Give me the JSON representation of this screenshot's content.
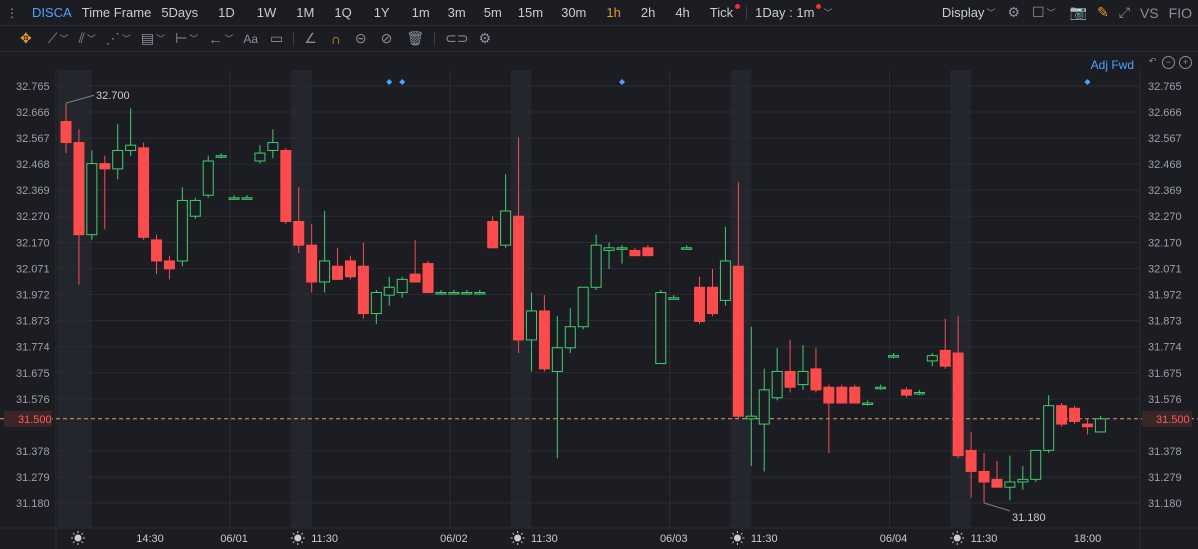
{
  "toolbar": {
    "symbol": "DISCA",
    "time_frame_label": "Time Frame",
    "periods": [
      "5Days",
      "1D",
      "1W",
      "1M",
      "1Q",
      "1Y",
      "1m",
      "3m",
      "5m",
      "15m",
      "30m",
      "1h",
      "2h",
      "4h",
      "Tick"
    ],
    "active_period": "1h",
    "interval_select": "1Day : 1m",
    "display_label": "Display",
    "vs_label": "VS",
    "fio_label": "FIO"
  },
  "drawing_toolbar": {
    "text_tool": "Aa"
  },
  "adj_label": "Adj Fwd",
  "colors": {
    "up": "#3ecf6e",
    "down": "#ff4b4b",
    "bg": "#1b1d22",
    "grid": "#2a2d33",
    "session": "#23262c",
    "accent": "#e09a2b",
    "blue": "#4da3ff"
  },
  "chart_data": {
    "type": "candlestick",
    "symbol": "DISCA",
    "ylim": [
      31.13,
      32.81
    ],
    "y_ticks": [
      32.765,
      32.666,
      32.567,
      32.468,
      32.369,
      32.27,
      32.17,
      32.071,
      31.972,
      31.873,
      31.774,
      31.675,
      31.576,
      31.5,
      31.378,
      31.279,
      31.18
    ],
    "y_tick_labels": [
      "32.765",
      "32.666",
      "32.567",
      "32.468",
      "32.369",
      "32.270",
      "32.170",
      "32.071",
      "31.972",
      "31.873",
      "31.774",
      "31.675",
      "31.576",
      "31.500",
      "31.378",
      "31.279",
      "31.180"
    ],
    "current_price": 31.5,
    "current_price_label": "31.500",
    "high_label": "32.700",
    "low_label": "31.180",
    "x_labels": [
      {
        "i": 0,
        "text": "",
        "sun": true
      },
      {
        "i": 6.5,
        "text": "14:30"
      },
      {
        "i": 13,
        "text": "06/01"
      },
      {
        "i": 17,
        "text": "",
        "sun": true
      },
      {
        "i": 20,
        "text": "11:30"
      },
      {
        "i": 30,
        "text": "06/02"
      },
      {
        "i": 34,
        "text": "",
        "sun": true
      },
      {
        "i": 37,
        "text": "11:30"
      },
      {
        "i": 47,
        "text": "06/03"
      },
      {
        "i": 51,
        "text": "",
        "sun": true
      },
      {
        "i": 54,
        "text": "11:30"
      },
      {
        "i": 64,
        "text": "06/04"
      },
      {
        "i": 68,
        "text": "",
        "sun": true
      },
      {
        "i": 71,
        "text": "11:30"
      },
      {
        "i": 79,
        "text": "18:00"
      }
    ],
    "candles": [
      {
        "o": 32.63,
        "h": 32.7,
        "l": 32.51,
        "c": 32.55
      },
      {
        "o": 32.55,
        "h": 32.6,
        "l": 32.01,
        "c": 32.2
      },
      {
        "o": 32.2,
        "h": 32.52,
        "l": 32.18,
        "c": 32.47
      },
      {
        "o": 32.47,
        "h": 32.5,
        "l": 32.22,
        "c": 32.45
      },
      {
        "o": 32.45,
        "h": 32.62,
        "l": 32.41,
        "c": 32.52
      },
      {
        "o": 32.52,
        "h": 32.68,
        "l": 32.5,
        "c": 32.54
      },
      {
        "o": 32.53,
        "h": 32.55,
        "l": 32.18,
        "c": 32.19
      },
      {
        "o": 32.18,
        "h": 32.2,
        "l": 32.05,
        "c": 32.1
      },
      {
        "o": 32.1,
        "h": 32.12,
        "l": 32.03,
        "c": 32.07
      },
      {
        "o": 32.1,
        "h": 32.38,
        "l": 32.08,
        "c": 32.33
      },
      {
        "o": 32.27,
        "h": 32.34,
        "l": 32.26,
        "c": 32.33
      },
      {
        "o": 32.35,
        "h": 32.5,
        "l": 32.34,
        "c": 32.48
      },
      {
        "o": 32.5,
        "h": 32.51,
        "l": 32.49,
        "c": 32.5
      },
      {
        "o": 32.34,
        "h": 32.35,
        "l": 32.34,
        "c": 32.34
      },
      {
        "o": 32.34,
        "h": 32.35,
        "l": 32.34,
        "c": 32.34
      },
      {
        "o": 32.48,
        "h": 32.54,
        "l": 32.47,
        "c": 32.51
      },
      {
        "o": 32.52,
        "h": 32.6,
        "l": 32.49,
        "c": 32.55
      },
      {
        "o": 32.52,
        "h": 32.53,
        "l": 32.24,
        "c": 32.25
      },
      {
        "o": 32.25,
        "h": 32.38,
        "l": 32.13,
        "c": 32.16
      },
      {
        "o": 32.16,
        "h": 32.24,
        "l": 31.98,
        "c": 32.02
      },
      {
        "o": 32.02,
        "h": 32.29,
        "l": 31.98,
        "c": 32.1
      },
      {
        "o": 32.08,
        "h": 32.15,
        "l": 32.03,
        "c": 32.03
      },
      {
        "o": 32.1,
        "h": 32.12,
        "l": 32.03,
        "c": 32.04
      },
      {
        "o": 32.08,
        "h": 32.17,
        "l": 31.88,
        "c": 31.9
      },
      {
        "o": 31.9,
        "h": 31.99,
        "l": 31.86,
        "c": 31.98
      },
      {
        "o": 31.97,
        "h": 32.04,
        "l": 31.93,
        "c": 32.0
      },
      {
        "o": 31.98,
        "h": 32.04,
        "l": 31.96,
        "c": 32.03
      },
      {
        "o": 32.05,
        "h": 32.18,
        "l": 32.02,
        "c": 32.02
      },
      {
        "o": 32.09,
        "h": 32.1,
        "l": 31.98,
        "c": 31.98
      },
      {
        "o": 31.98,
        "h": 31.99,
        "l": 31.98,
        "c": 31.98
      },
      {
        "o": 31.98,
        "h": 31.99,
        "l": 31.98,
        "c": 31.98
      },
      {
        "o": 31.98,
        "h": 31.99,
        "l": 31.98,
        "c": 31.98
      },
      {
        "o": 31.98,
        "h": 31.99,
        "l": 31.98,
        "c": 31.98
      },
      {
        "o": 32.25,
        "h": 32.27,
        "l": 32.15,
        "c": 32.15
      },
      {
        "o": 32.16,
        "h": 32.43,
        "l": 32.15,
        "c": 32.29
      },
      {
        "o": 32.27,
        "h": 32.57,
        "l": 31.75,
        "c": 31.8
      },
      {
        "o": 31.8,
        "h": 31.98,
        "l": 31.68,
        "c": 31.91
      },
      {
        "o": 31.91,
        "h": 31.97,
        "l": 31.68,
        "c": 31.69
      },
      {
        "o": 31.68,
        "h": 31.89,
        "l": 31.35,
        "c": 31.77
      },
      {
        "o": 31.77,
        "h": 31.92,
        "l": 31.75,
        "c": 31.85
      },
      {
        "o": 31.85,
        "h": 32.0,
        "l": 31.84,
        "c": 32.0
      },
      {
        "o": 32.0,
        "h": 32.2,
        "l": 31.99,
        "c": 32.16
      },
      {
        "o": 32.14,
        "h": 32.17,
        "l": 32.07,
        "c": 32.15
      },
      {
        "o": 32.15,
        "h": 32.16,
        "l": 32.09,
        "c": 32.15
      },
      {
        "o": 32.14,
        "h": 32.15,
        "l": 32.12,
        "c": 32.12
      },
      {
        "o": 32.15,
        "h": 32.16,
        "l": 32.12,
        "c": 32.12
      },
      {
        "o": 31.71,
        "h": 31.99,
        "l": 31.71,
        "c": 31.98
      },
      {
        "o": 31.96,
        "h": 31.97,
        "l": 31.96,
        "c": 31.96
      },
      {
        "o": 32.15,
        "h": 32.16,
        "l": 32.15,
        "c": 32.15
      },
      {
        "o": 32.0,
        "h": 32.04,
        "l": 31.86,
        "c": 31.87
      },
      {
        "o": 32.0,
        "h": 32.07,
        "l": 31.89,
        "c": 31.9
      },
      {
        "o": 31.95,
        "h": 32.23,
        "l": 31.93,
        "c": 32.1
      },
      {
        "o": 32.08,
        "h": 32.4,
        "l": 31.5,
        "c": 31.51
      },
      {
        "o": 31.5,
        "h": 31.85,
        "l": 31.32,
        "c": 31.51
      },
      {
        "o": 31.48,
        "h": 31.69,
        "l": 31.3,
        "c": 31.61
      },
      {
        "o": 31.58,
        "h": 31.77,
        "l": 31.57,
        "c": 31.68
      },
      {
        "o": 31.68,
        "h": 31.8,
        "l": 31.6,
        "c": 31.62
      },
      {
        "o": 31.63,
        "h": 31.78,
        "l": 31.61,
        "c": 31.68
      },
      {
        "o": 31.69,
        "h": 31.77,
        "l": 31.6,
        "c": 31.61
      },
      {
        "o": 31.62,
        "h": 31.63,
        "l": 31.37,
        "c": 31.56
      },
      {
        "o": 31.62,
        "h": 31.63,
        "l": 31.56,
        "c": 31.56
      },
      {
        "o": 31.62,
        "h": 31.63,
        "l": 31.56,
        "c": 31.56
      },
      {
        "o": 31.56,
        "h": 31.57,
        "l": 31.55,
        "c": 31.56
      },
      {
        "o": 31.62,
        "h": 31.63,
        "l": 31.61,
        "c": 31.62
      },
      {
        "o": 31.74,
        "h": 31.75,
        "l": 31.73,
        "c": 31.74
      },
      {
        "o": 31.61,
        "h": 31.62,
        "l": 31.58,
        "c": 31.59
      },
      {
        "o": 31.6,
        "h": 31.61,
        "l": 31.59,
        "c": 31.6
      },
      {
        "o": 31.72,
        "h": 31.75,
        "l": 31.7,
        "c": 31.74
      },
      {
        "o": 31.76,
        "h": 31.88,
        "l": 31.69,
        "c": 31.7
      },
      {
        "o": 31.75,
        "h": 31.89,
        "l": 31.35,
        "c": 31.36
      },
      {
        "o": 31.38,
        "h": 31.45,
        "l": 31.2,
        "c": 31.3
      },
      {
        "o": 31.3,
        "h": 31.37,
        "l": 31.18,
        "c": 31.26
      },
      {
        "o": 31.27,
        "h": 31.34,
        "l": 31.24,
        "c": 31.24
      },
      {
        "o": 31.24,
        "h": 31.36,
        "l": 31.19,
        "c": 31.26
      },
      {
        "o": 31.26,
        "h": 31.32,
        "l": 31.23,
        "c": 31.27
      },
      {
        "o": 31.27,
        "h": 31.38,
        "l": 31.26,
        "c": 31.38
      },
      {
        "o": 31.38,
        "h": 31.59,
        "l": 31.37,
        "c": 31.55
      },
      {
        "o": 31.55,
        "h": 31.56,
        "l": 31.47,
        "c": 31.48
      },
      {
        "o": 31.54,
        "h": 31.55,
        "l": 31.48,
        "c": 31.49
      },
      {
        "o": 31.48,
        "h": 31.5,
        "l": 31.44,
        "c": 31.47
      },
      {
        "o": 31.45,
        "h": 31.51,
        "l": 31.45,
        "c": 31.5
      }
    ]
  }
}
